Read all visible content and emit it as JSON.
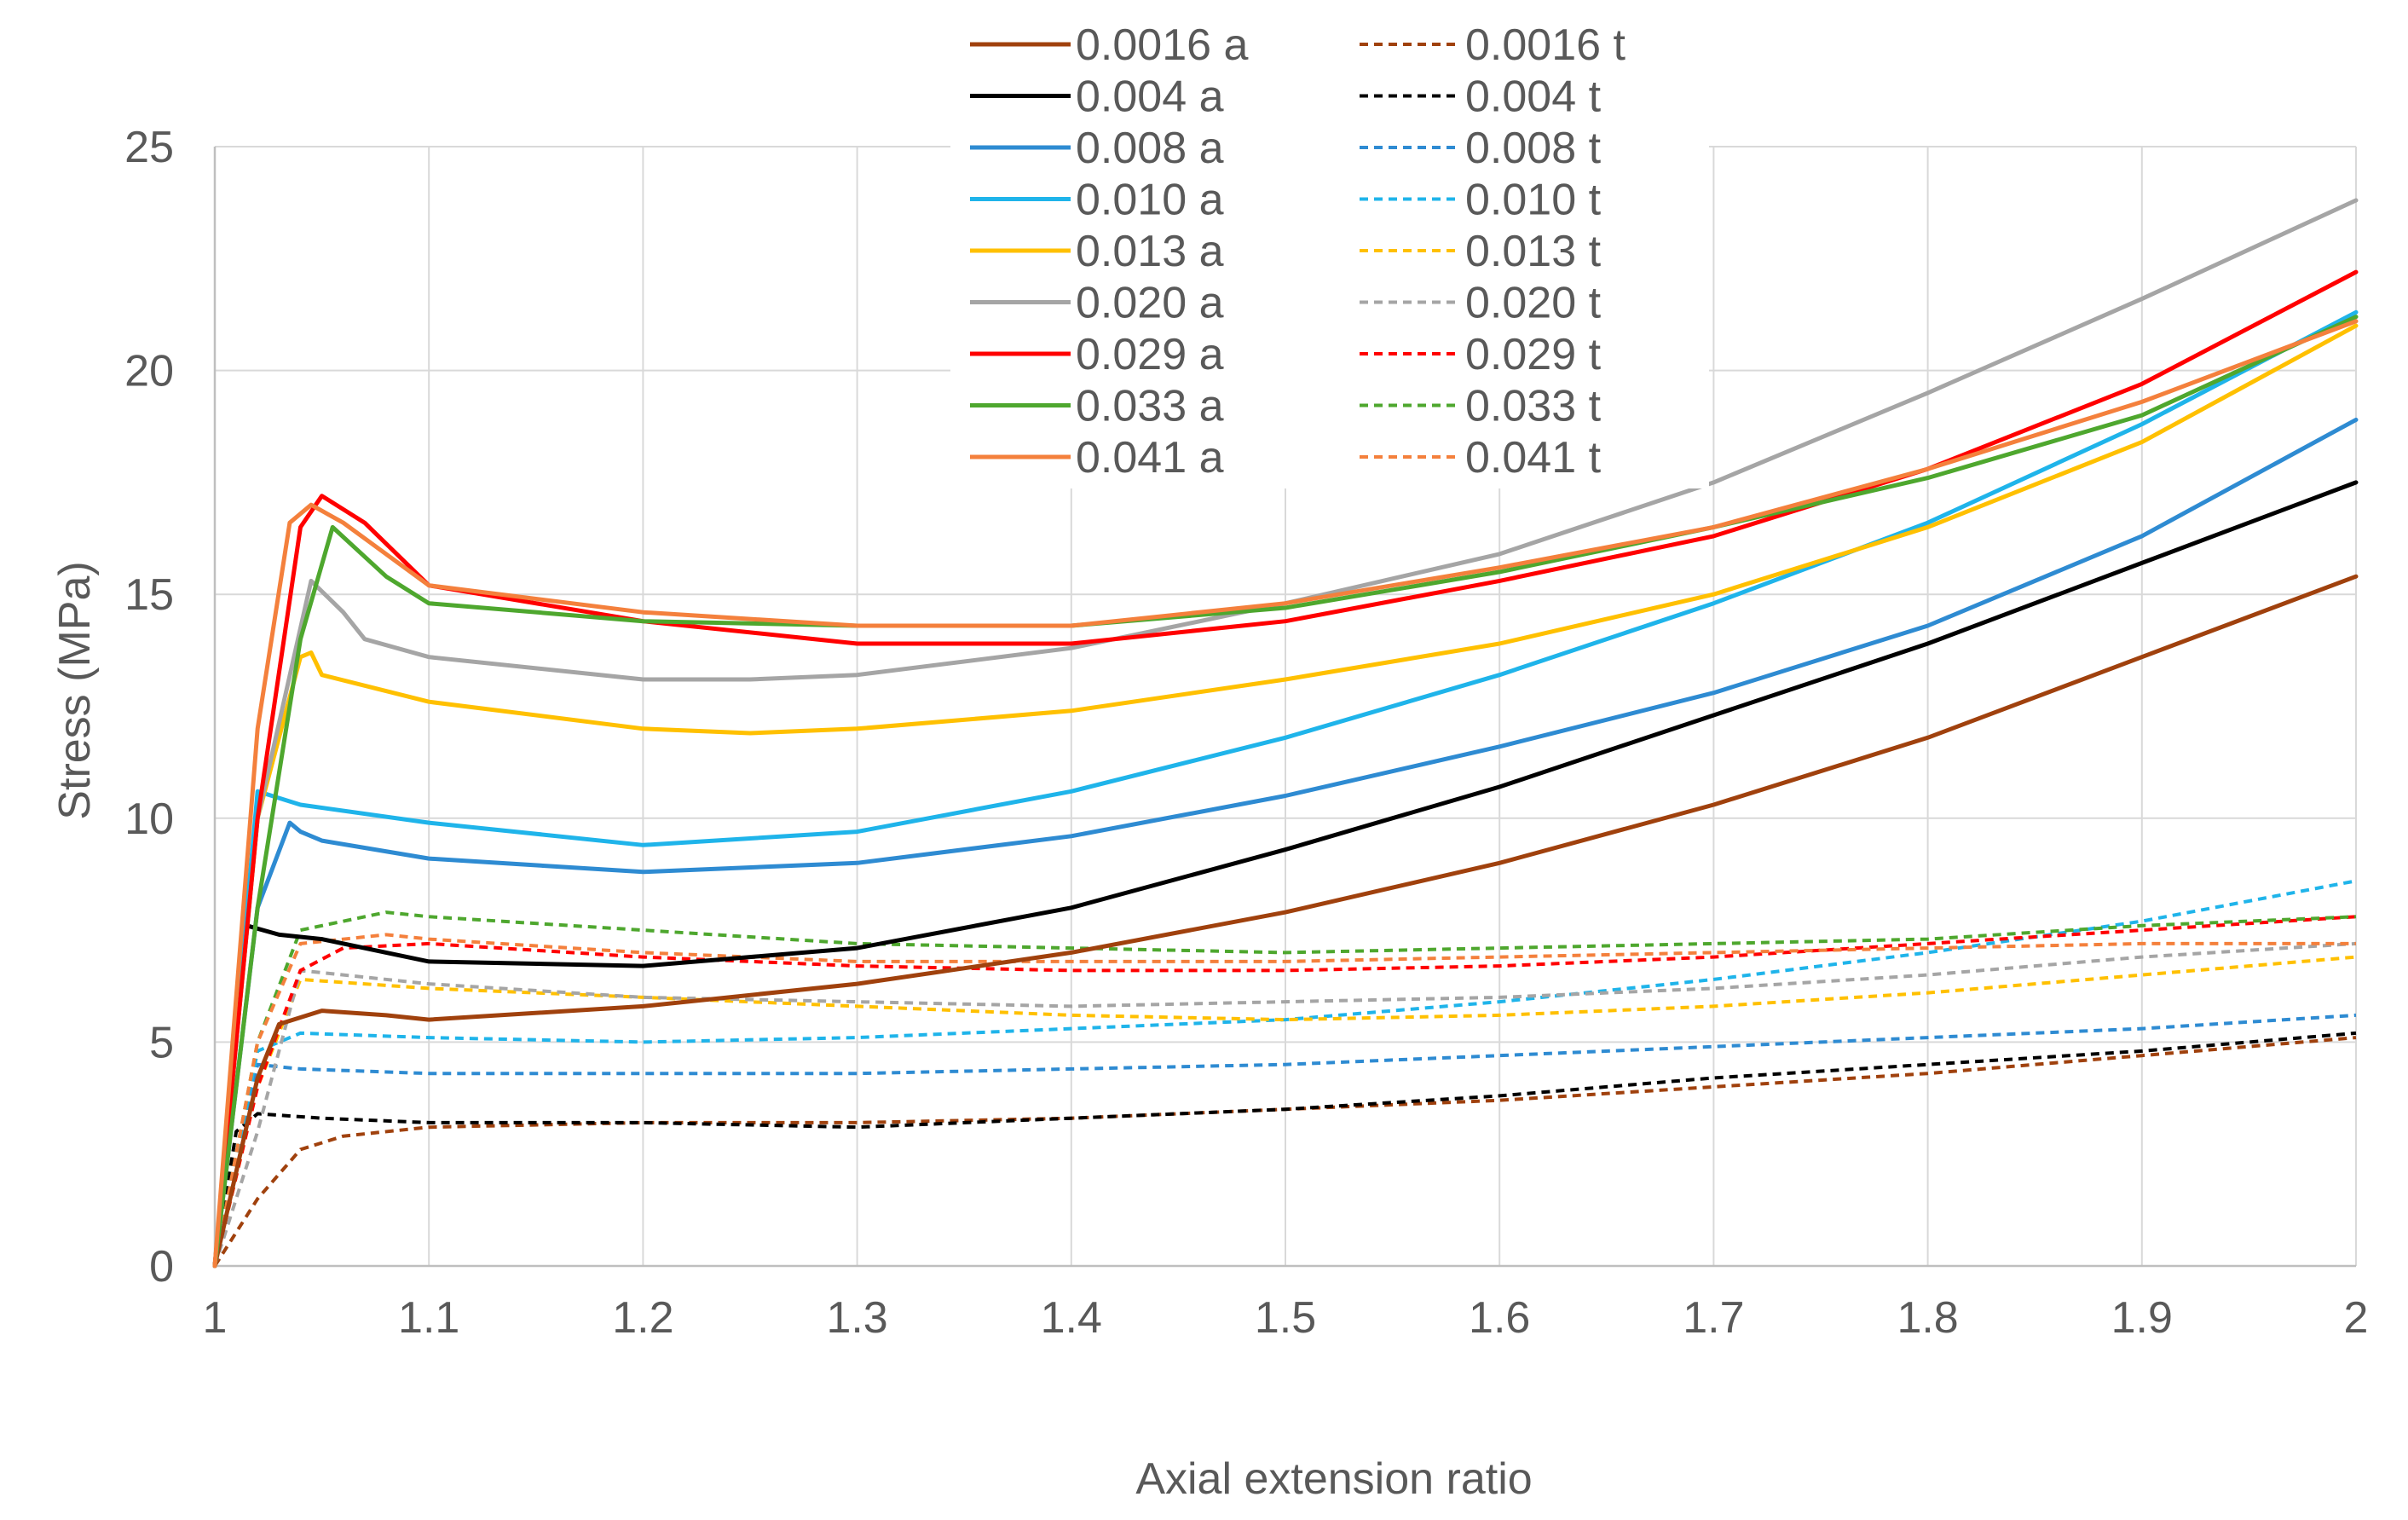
{
  "chart_data": {
    "type": "line",
    "title": "",
    "xlabel": "Axial extension ratio",
    "ylabel": "Stress (MPa)",
    "xlim": [
      1,
      2
    ],
    "ylim": [
      0,
      25
    ],
    "xticks": [
      "1",
      "1.1",
      "1.2",
      "1.3",
      "1.4",
      "1.5",
      "1.6",
      "1.7",
      "1.8",
      "1.9",
      "2"
    ],
    "yticks": [
      "0",
      "5",
      "10",
      "15",
      "20",
      "25"
    ],
    "grid": true,
    "legend_position": "top",
    "series": [
      {
        "name": "0.0016 a",
        "color": "#A0410D",
        "dash": false,
        "x": [
          1,
          1.02,
          1.03,
          1.05,
          1.08,
          1.1,
          1.2,
          1.3,
          1.4,
          1.5,
          1.6,
          1.7,
          1.8,
          1.9,
          2
        ],
        "y": [
          0,
          4.2,
          5.4,
          5.7,
          5.6,
          5.5,
          5.8,
          6.3,
          7.0,
          7.9,
          9.0,
          10.3,
          11.8,
          13.6,
          15.4
        ]
      },
      {
        "name": "0.0016 t",
        "color": "#A0410D",
        "dash": true,
        "x": [
          1,
          1.02,
          1.04,
          1.06,
          1.1,
          1.2,
          1.3,
          1.4,
          1.5,
          1.6,
          1.7,
          1.8,
          1.9,
          2
        ],
        "y": [
          0,
          1.5,
          2.6,
          2.9,
          3.1,
          3.2,
          3.2,
          3.3,
          3.5,
          3.7,
          4.0,
          4.3,
          4.7,
          5.1
        ]
      },
      {
        "name": "0.004 a",
        "color": "#000000",
        "dash": false,
        "x": [
          1,
          1.015,
          1.03,
          1.05,
          1.08,
          1.1,
          1.2,
          1.3,
          1.4,
          1.5,
          1.6,
          1.7,
          1.8,
          1.9,
          2
        ],
        "y": [
          0,
          7.6,
          7.4,
          7.3,
          7.0,
          6.8,
          6.7,
          7.1,
          8.0,
          9.3,
          10.7,
          12.3,
          13.9,
          15.7,
          17.5
        ]
      },
      {
        "name": "0.004 t",
        "color": "#000000",
        "dash": true,
        "x": [
          1,
          1.01,
          1.02,
          1.05,
          1.1,
          1.2,
          1.3,
          1.4,
          1.5,
          1.6,
          1.7,
          1.8,
          1.9,
          2
        ],
        "y": [
          0,
          3.0,
          3.4,
          3.3,
          3.2,
          3.2,
          3.1,
          3.3,
          3.5,
          3.8,
          4.2,
          4.5,
          4.8,
          5.2
        ]
      },
      {
        "name": "0.008 a",
        "color": "#2E8BD2",
        "dash": false,
        "x": [
          1,
          1.02,
          1.035,
          1.04,
          1.05,
          1.1,
          1.2,
          1.3,
          1.4,
          1.5,
          1.6,
          1.7,
          1.8,
          1.9,
          2
        ],
        "y": [
          0,
          8.0,
          9.9,
          9.7,
          9.5,
          9.1,
          8.8,
          9.0,
          9.6,
          10.5,
          11.6,
          12.8,
          14.3,
          16.3,
          18.9
        ]
      },
      {
        "name": "0.008 t",
        "color": "#2E8BD2",
        "dash": true,
        "x": [
          1,
          1.02,
          1.04,
          1.1,
          1.2,
          1.3,
          1.4,
          1.5,
          1.6,
          1.7,
          1.8,
          1.9,
          2
        ],
        "y": [
          0,
          4.5,
          4.4,
          4.3,
          4.3,
          4.3,
          4.4,
          4.5,
          4.7,
          4.9,
          5.1,
          5.3,
          5.6
        ]
      },
      {
        "name": "0.010 a",
        "color": "#1FB4EA",
        "dash": false,
        "x": [
          1,
          1.02,
          1.04,
          1.1,
          1.2,
          1.3,
          1.4,
          1.5,
          1.6,
          1.7,
          1.8,
          1.9,
          2
        ],
        "y": [
          0,
          10.6,
          10.3,
          9.9,
          9.4,
          9.7,
          10.6,
          11.8,
          13.2,
          14.8,
          16.6,
          18.8,
          21.3
        ]
      },
      {
        "name": "0.010 t",
        "color": "#1FB4EA",
        "dash": true,
        "x": [
          1,
          1.02,
          1.04,
          1.1,
          1.2,
          1.3,
          1.4,
          1.5,
          1.6,
          1.7,
          1.8,
          1.9,
          2
        ],
        "y": [
          0,
          4.8,
          5.2,
          5.1,
          5.0,
          5.1,
          5.3,
          5.5,
          5.9,
          6.4,
          7.0,
          7.7,
          8.6
        ]
      },
      {
        "name": "0.013 a",
        "color": "#FFC000",
        "dash": false,
        "x": [
          1,
          1.02,
          1.04,
          1.045,
          1.05,
          1.1,
          1.2,
          1.25,
          1.3,
          1.4,
          1.5,
          1.6,
          1.7,
          1.8,
          1.9,
          2
        ],
        "y": [
          0,
          10.0,
          13.6,
          13.7,
          13.2,
          12.6,
          12.0,
          11.9,
          12.0,
          12.4,
          13.1,
          13.9,
          15.0,
          16.5,
          18.4,
          21.0
        ]
      },
      {
        "name": "0.013 t",
        "color": "#FFC000",
        "dash": true,
        "x": [
          1,
          1.02,
          1.04,
          1.1,
          1.2,
          1.3,
          1.4,
          1.5,
          1.6,
          1.7,
          1.8,
          1.9,
          2
        ],
        "y": [
          0,
          4.0,
          6.4,
          6.2,
          6.0,
          5.8,
          5.6,
          5.5,
          5.6,
          5.8,
          6.1,
          6.5,
          6.9
        ]
      },
      {
        "name": "0.020 a",
        "color": "#A5A5A5",
        "dash": false,
        "x": [
          1,
          1.02,
          1.045,
          1.06,
          1.07,
          1.1,
          1.2,
          1.25,
          1.3,
          1.4,
          1.5,
          1.6,
          1.7,
          1.8,
          1.9,
          2
        ],
        "y": [
          0,
          10.0,
          15.3,
          14.6,
          14.0,
          13.6,
          13.1,
          13.1,
          13.2,
          13.8,
          14.8,
          15.9,
          17.5,
          19.5,
          21.6,
          23.8
        ]
      },
      {
        "name": "0.020 t",
        "color": "#A5A5A5",
        "dash": true,
        "x": [
          1,
          1.02,
          1.04,
          1.1,
          1.2,
          1.3,
          1.4,
          1.5,
          1.6,
          1.7,
          1.8,
          1.9,
          2
        ],
        "y": [
          0,
          3.0,
          6.6,
          6.3,
          6.0,
          5.9,
          5.8,
          5.9,
          6.0,
          6.2,
          6.5,
          6.9,
          7.2
        ]
      },
      {
        "name": "0.029 a",
        "color": "#FF0000",
        "dash": false,
        "x": [
          1,
          1.02,
          1.04,
          1.05,
          1.07,
          1.1,
          1.2,
          1.3,
          1.4,
          1.5,
          1.6,
          1.7,
          1.8,
          1.9,
          2
        ],
        "y": [
          0,
          10.0,
          16.5,
          17.2,
          16.6,
          15.2,
          14.4,
          13.9,
          13.9,
          14.4,
          15.3,
          16.3,
          17.8,
          19.7,
          22.2
        ]
      },
      {
        "name": "0.029 t",
        "color": "#FF0000",
        "dash": true,
        "x": [
          1,
          1.02,
          1.04,
          1.06,
          1.1,
          1.2,
          1.3,
          1.4,
          1.5,
          1.6,
          1.7,
          1.8,
          1.9,
          2
        ],
        "y": [
          0,
          4.0,
          6.6,
          7.1,
          7.2,
          6.9,
          6.7,
          6.6,
          6.6,
          6.7,
          6.9,
          7.2,
          7.5,
          7.8
        ]
      },
      {
        "name": "0.033 a",
        "color": "#4EA72E",
        "dash": false,
        "x": [
          1,
          1.02,
          1.04,
          1.055,
          1.08,
          1.1,
          1.2,
          1.3,
          1.4,
          1.5,
          1.6,
          1.7,
          1.8,
          1.9,
          2
        ],
        "y": [
          0,
          8.0,
          14.0,
          16.5,
          15.4,
          14.8,
          14.4,
          14.3,
          14.3,
          14.7,
          15.5,
          16.5,
          17.6,
          19.0,
          21.2
        ]
      },
      {
        "name": "0.033 t",
        "color": "#4EA72E",
        "dash": true,
        "x": [
          1,
          1.02,
          1.04,
          1.08,
          1.1,
          1.2,
          1.3,
          1.4,
          1.5,
          1.6,
          1.7,
          1.8,
          1.9,
          2
        ],
        "y": [
          0,
          5.0,
          7.5,
          7.9,
          7.8,
          7.5,
          7.2,
          7.1,
          7.0,
          7.1,
          7.2,
          7.3,
          7.6,
          7.8
        ]
      },
      {
        "name": "0.041 a",
        "color": "#F4803C",
        "dash": false,
        "x": [
          1,
          1.02,
          1.035,
          1.045,
          1.06,
          1.1,
          1.2,
          1.3,
          1.4,
          1.5,
          1.6,
          1.7,
          1.8,
          1.9,
          2
        ],
        "y": [
          0,
          12.0,
          16.6,
          17.0,
          16.6,
          15.2,
          14.6,
          14.3,
          14.3,
          14.8,
          15.6,
          16.5,
          17.8,
          19.3,
          21.1
        ]
      },
      {
        "name": "0.041 t",
        "color": "#F4803C",
        "dash": true,
        "x": [
          1,
          1.02,
          1.04,
          1.08,
          1.1,
          1.2,
          1.3,
          1.4,
          1.5,
          1.6,
          1.7,
          1.8,
          1.9,
          2
        ],
        "y": [
          0,
          5.0,
          7.2,
          7.4,
          7.3,
          7.0,
          6.8,
          6.8,
          6.8,
          6.9,
          7.0,
          7.1,
          7.2,
          7.2
        ]
      }
    ]
  }
}
